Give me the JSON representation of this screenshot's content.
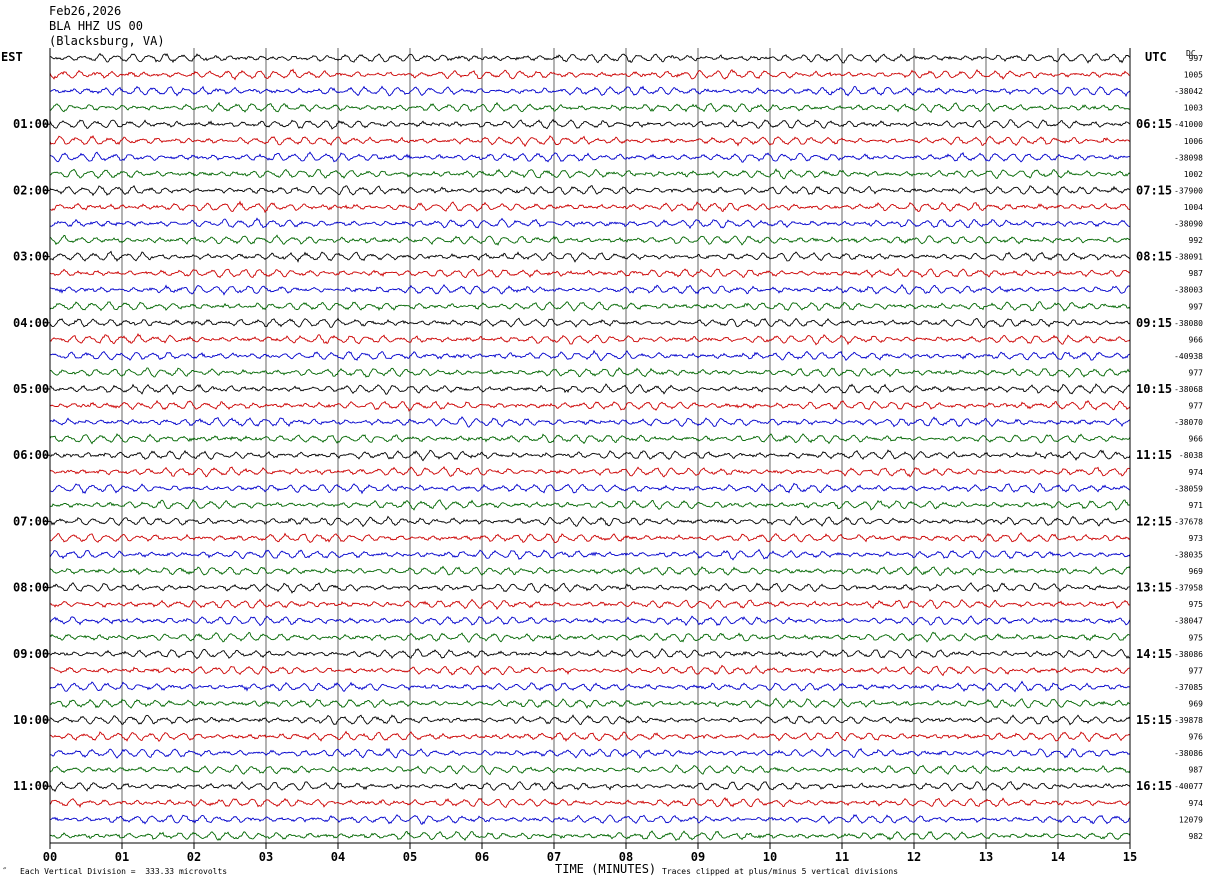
{
  "header": {
    "date": "Feb26,2026",
    "station": "BLA HHZ US 00",
    "location": "(Blacksburg, VA)"
  },
  "left_timezone": "EST",
  "right_timezone": "UTC",
  "dc_label": "DC",
  "footer": {
    "mark": "″",
    "scale_note": "Each Vertical Division =  333.33 microvolts",
    "axis_title": "TIME (MINUTES)",
    "clip_note": "Traces clipped at plus/minus 5 vertical divisions"
  },
  "colors": {
    "trace_cycle": [
      "#000000",
      "#cc0000",
      "#0000cc",
      "#006600"
    ],
    "grid": "#000000",
    "background": "#ffffff"
  },
  "chart_data": {
    "type": "line",
    "title": "BLA HHZ US 00 (Blacksburg, VA) Feb26,2026",
    "xlabel": "TIME (MINUTES)",
    "ylabel": "",
    "x_ticks": [
      "00",
      "01",
      "02",
      "03",
      "04",
      "05",
      "06",
      "07",
      "08",
      "09",
      "10",
      "11",
      "12",
      "13",
      "14",
      "15"
    ],
    "xlim": [
      0,
      15
    ],
    "traces_per_hour": 4,
    "left_hour_labels": [
      "01:00",
      "02:00",
      "03:00",
      "04:00",
      "05:00",
      "06:00",
      "07:00",
      "08:00",
      "09:00",
      "10:00",
      "11:00"
    ],
    "right_hour_labels": [
      "06:15",
      "07:15",
      "08:15",
      "09:15",
      "10:15",
      "11:15",
      "12:15",
      "13:15",
      "14:15",
      "15:15",
      "16:15"
    ],
    "trace_dc_offsets": [
      "997",
      "1005",
      "-38042",
      "1003",
      "-41000",
      "1006",
      "-38098",
      "1002",
      "-37900",
      "1004",
      "-38090",
      "992",
      "-38091",
      "987",
      "-38003",
      "997",
      "-38080",
      "966",
      "-40938",
      "977",
      "-38068",
      "977",
      "-38070",
      "966",
      "-8038",
      "974",
      "-38059",
      "971",
      "-37678",
      "973",
      "-38035",
      "969",
      "-37958",
      "975",
      "-38047",
      "975",
      "-38086",
      "977",
      "-37085",
      "969",
      "-39878",
      "976",
      "-38086",
      "987",
      "-40077",
      "974",
      "12079",
      "982"
    ],
    "clip_divisions": 5,
    "microvolts_per_division": 333.33
  }
}
